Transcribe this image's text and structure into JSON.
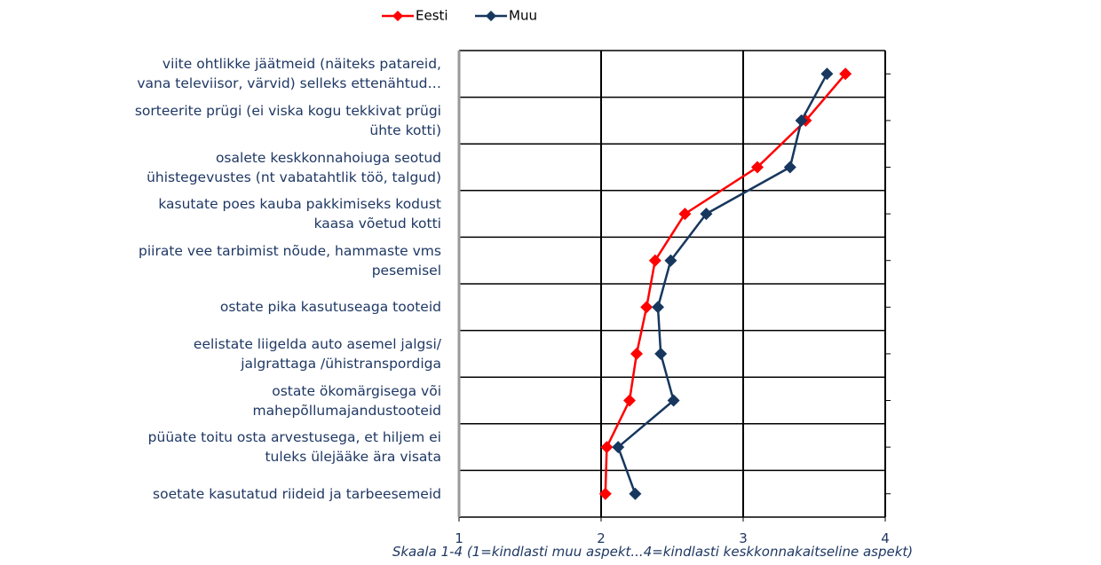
{
  "chart_data": {
    "type": "line",
    "orientation": "horizontal",
    "categories": [
      "viite ohtlikke jäätmeid (näiteks patareid,\nvana televiisor, värvid) selleks ettenähtud…",
      "sorteerite prügi (ei viska kogu tekkivat prügi\nühte kotti)",
      "osalete keskkonnahoiuga seotud\nühistegevustes (nt vabatahtlik töö, talgud)",
      "kasutate poes kauba pakkimiseks kodust\nkaasa võetud kotti",
      "piirate vee tarbimist nõude, hammaste vms\npesemisel",
      "ostate pika kasutuseaga tooteid",
      "eelistate liigelda auto asemel jalgsi/\njalgrattaga /ühistranspordiga",
      "ostate ökomärgisega või\nmahepõllumajandustooteid",
      "püüate toitu osta arvestusega, et hiljem ei\ntuleks ülejääke ära visata",
      "soetate kasutatud riideid ja tarbeesemeid"
    ],
    "series": [
      {
        "name": "Eesti",
        "color": "#ff0000",
        "values": [
          3.72,
          3.44,
          3.1,
          2.59,
          2.38,
          2.32,
          2.25,
          2.2,
          2.04,
          2.03
        ]
      },
      {
        "name": "Muu",
        "color": "#17375e",
        "values": [
          3.59,
          3.41,
          3.33,
          2.74,
          2.49,
          2.4,
          2.42,
          2.51,
          2.12,
          2.24
        ]
      }
    ],
    "xlim": [
      1,
      4
    ],
    "xticks": [
      1,
      2,
      3,
      4
    ],
    "xlabel": "Skaala 1-4 (1=kindlasti muu aspekt...4=kindlasti keskkonnakaitseline aspekt)",
    "grid": true,
    "legend": "top"
  }
}
